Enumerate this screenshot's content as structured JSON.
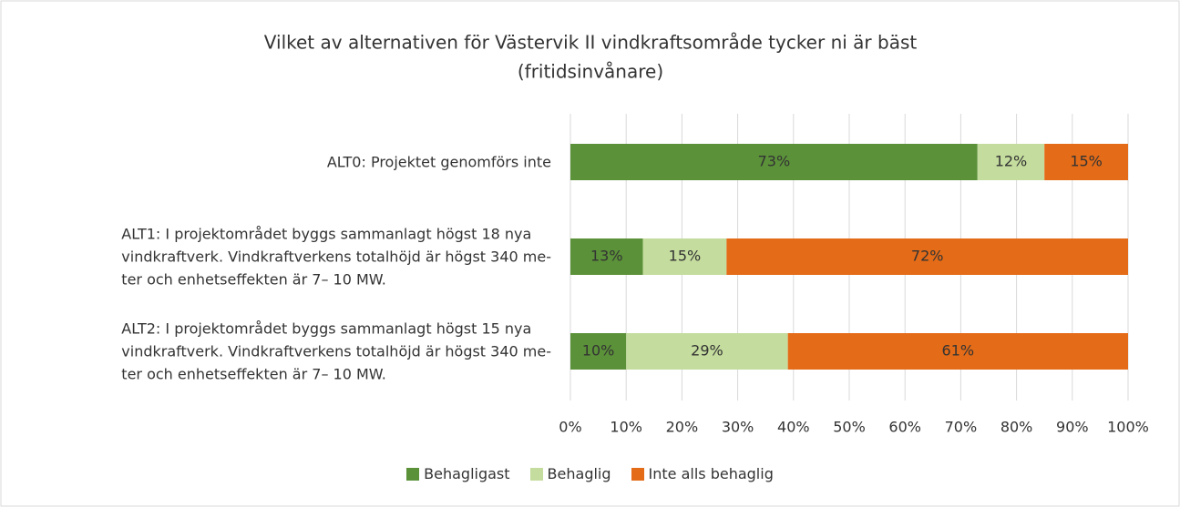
{
  "chart_data": {
    "type": "stacked-bar-horizontal",
    "title": "Vilket av alternativen för Västervik II vindkraftsområde tycker ni är bäst",
    "subtitle": "(fritidsinvånare)",
    "categories": [
      "ALT0: Projektet genomförs inte",
      "ALT1: I projektområdet byggs sammanlagt högst 18 nya\nvindkraftverk. Vindkraftverkens totalhöjd är högst 340 me-\nter och enhetseffekten är 7– 10 MW.",
      "ALT2: I projektområdet byggs sammanlagt högst 15 nya\nvindkraftverk. Vindkraftverkens totalhöjd är högst 340 me-\nter och enhetseffekten är 7– 10 MW."
    ],
    "series": [
      {
        "name": "Behagligast",
        "color": "#5b9139",
        "values": [
          73,
          13,
          10
        ],
        "value_labels": [
          "73%",
          "13%",
          "10%"
        ]
      },
      {
        "name": "Behaglig",
        "color": "#c4dc9e",
        "values": [
          12,
          15,
          29
        ],
        "value_labels": [
          "12%",
          "15%",
          "29%"
        ]
      },
      {
        "name": "Inte alls behaglig",
        "color": "#e46b17",
        "values": [
          15,
          72,
          61
        ],
        "value_labels": [
          "15%",
          "72%",
          "61%"
        ]
      }
    ],
    "xlim": [
      0,
      100
    ],
    "xticks": [
      {
        "value": 0,
        "label": "0%"
      },
      {
        "value": 10,
        "label": "10%"
      },
      {
        "value": 20,
        "label": "20%"
      },
      {
        "value": 30,
        "label": "30%"
      },
      {
        "value": 40,
        "label": "40%"
      },
      {
        "value": 50,
        "label": "50%"
      },
      {
        "value": 60,
        "label": "60%"
      },
      {
        "value": 70,
        "label": "70%"
      },
      {
        "value": 80,
        "label": "80%"
      },
      {
        "value": 90,
        "label": "90%"
      },
      {
        "value": 100,
        "label": "100%"
      }
    ],
    "grid": true,
    "legend": "bottom"
  }
}
